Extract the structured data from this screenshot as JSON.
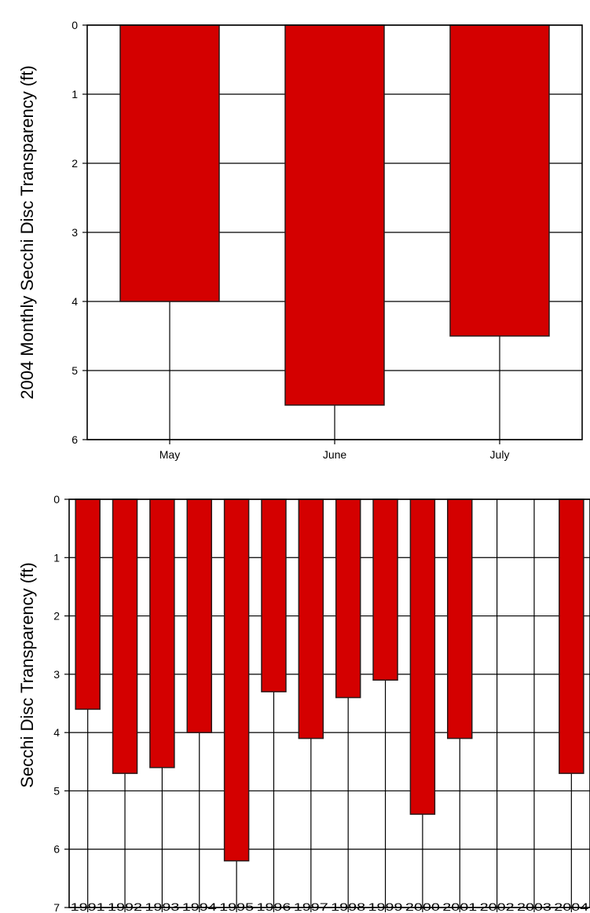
{
  "colors": {
    "bar_fill": "#d40000",
    "bar_stroke": "#2a1a1a",
    "grid": "#000000"
  },
  "chart_data": [
    {
      "type": "bar",
      "orientation": "vertical, bars hang from zero at top",
      "title": "",
      "xlabel": "",
      "ylabel": "2004 Monthly Secchi Disc Transparency (ft)",
      "y_inverted": true,
      "ylim": [
        0,
        6
      ],
      "yticks": [
        0,
        1,
        2,
        3,
        4,
        5,
        6
      ],
      "grid": true,
      "categories": [
        "May",
        "June",
        "July"
      ],
      "values": [
        4.0,
        5.5,
        4.5
      ]
    },
    {
      "type": "bar",
      "orientation": "vertical, bars hang from zero at top",
      "title": "",
      "xlabel": "",
      "ylabel": "Secchi Disc Transparency (ft)",
      "y_inverted": true,
      "ylim": [
        0,
        7
      ],
      "yticks": [
        0,
        1,
        2,
        3,
        4,
        5,
        6,
        7
      ],
      "grid": true,
      "categories": [
        "1991",
        "1992",
        "1993",
        "1994",
        "1995",
        "1996",
        "1997",
        "1998",
        "1999",
        "2000",
        "2001",
        "2002",
        "2003",
        "2004"
      ],
      "values": [
        3.6,
        4.7,
        4.6,
        4.0,
        6.2,
        3.3,
        4.1,
        3.4,
        3.1,
        5.4,
        4.1,
        null,
        null,
        4.7
      ]
    }
  ]
}
